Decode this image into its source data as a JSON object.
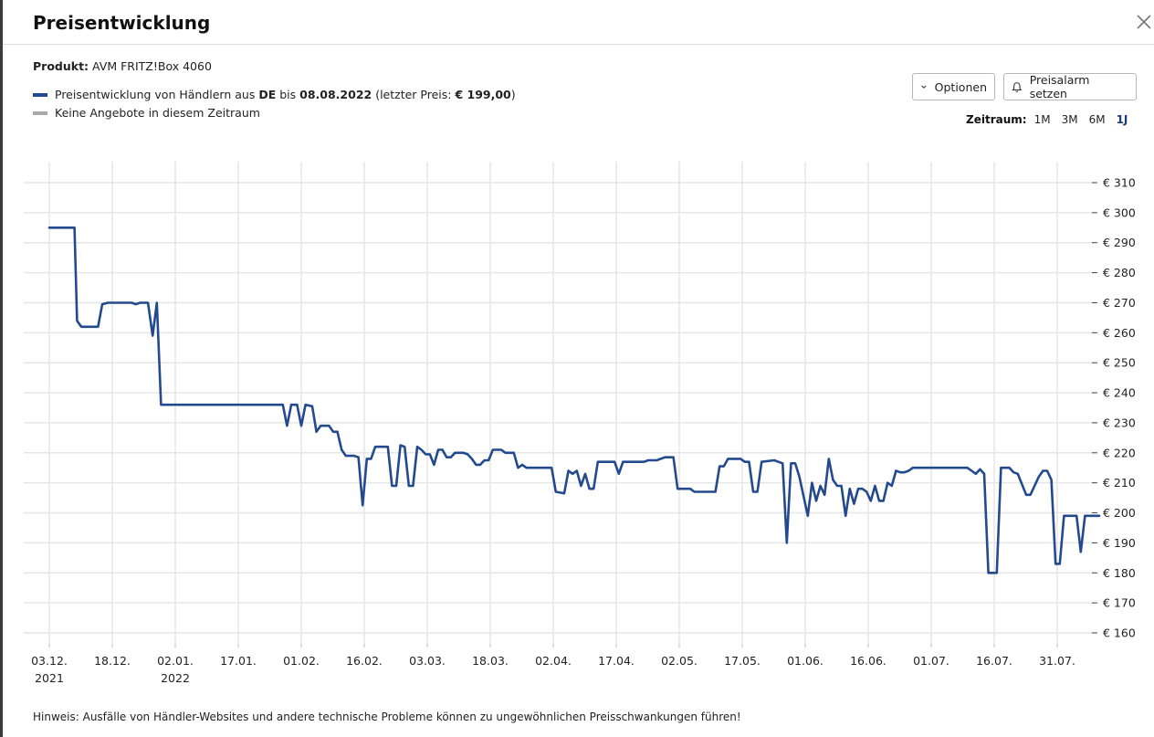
{
  "header": {
    "title": "Preisentwicklung"
  },
  "product": {
    "label": "Produkt:",
    "name": "AVM FRITZ!Box 4060"
  },
  "legend": {
    "series_prefix": "Preisentwicklung von Händlern aus",
    "country": "DE",
    "until_word": "bis",
    "date": "08.08.2022",
    "last_price_prefix": "(letzter Preis:",
    "last_price": "€ 199,00",
    "last_price_suffix": ")",
    "no_offers": "Keine Angebote in diesem Zeitraum",
    "series_color": "#234a8e",
    "no_offers_color": "#aaaaaa"
  },
  "buttons": {
    "options": "Optionen",
    "price_alert": "Preisalarm setzen"
  },
  "timerange": {
    "label": "Zeitraum:",
    "options": [
      "1M",
      "3M",
      "6M",
      "1J"
    ],
    "active": "1J"
  },
  "hint": "Hinweis: Ausfälle von Händler-Websites und andere technische Probleme können zu ungewöhnlichen Preisschwankungen führen!",
  "chart_data": {
    "type": "line",
    "title": "",
    "xlabel": "",
    "ylabel": "",
    "grid": true,
    "legend_position": "top-left",
    "x_ticks": [
      {
        "day": 0,
        "label": "03.12.",
        "sub": "2021"
      },
      {
        "day": 15,
        "label": "18.12.",
        "sub": ""
      },
      {
        "day": 30,
        "label": "02.01.",
        "sub": "2022"
      },
      {
        "day": 45,
        "label": "17.01.",
        "sub": ""
      },
      {
        "day": 60,
        "label": "01.02.",
        "sub": ""
      },
      {
        "day": 75,
        "label": "16.02.",
        "sub": ""
      },
      {
        "day": 90,
        "label": "03.03.",
        "sub": ""
      },
      {
        "day": 105,
        "label": "18.03.",
        "sub": ""
      },
      {
        "day": 120,
        "label": "02.04.",
        "sub": ""
      },
      {
        "day": 135,
        "label": "17.04.",
        "sub": ""
      },
      {
        "day": 150,
        "label": "02.05.",
        "sub": ""
      },
      {
        "day": 165,
        "label": "17.05.",
        "sub": ""
      },
      {
        "day": 180,
        "label": "01.06.",
        "sub": ""
      },
      {
        "day": 195,
        "label": "16.06.",
        "sub": ""
      },
      {
        "day": 210,
        "label": "01.07.",
        "sub": ""
      },
      {
        "day": 225,
        "label": "16.07.",
        "sub": ""
      },
      {
        "day": 240,
        "label": "31.07.",
        "sub": ""
      }
    ],
    "x_range": [
      0,
      248
    ],
    "y_ticks": [
      160,
      170,
      180,
      190,
      200,
      210,
      220,
      230,
      240,
      250,
      260,
      270,
      280,
      290,
      300,
      310
    ],
    "y_tick_format": "€ {v}",
    "ylim": [
      160,
      310
    ],
    "series": [
      {
        "name": "Preisentwicklung von Händlern aus DE",
        "color": "#234a8e",
        "points": [
          [
            0,
            295
          ],
          [
            6,
            295
          ],
          [
            6.6,
            264
          ],
          [
            7.6,
            262
          ],
          [
            11.6,
            262
          ],
          [
            12.6,
            269.5
          ],
          [
            14,
            270
          ],
          [
            19.6,
            270
          ],
          [
            20.6,
            269.5
          ],
          [
            21.6,
            270
          ],
          [
            23.5,
            270
          ],
          [
            24.6,
            259
          ],
          [
            25.6,
            270
          ],
          [
            26.6,
            236
          ],
          [
            55.6,
            236
          ],
          [
            56.6,
            229
          ],
          [
            57.6,
            236
          ],
          [
            59,
            236
          ],
          [
            60,
            229
          ],
          [
            61,
            236
          ],
          [
            62.6,
            235.5
          ],
          [
            63.6,
            227
          ],
          [
            64.6,
            229
          ],
          [
            66.6,
            229
          ],
          [
            67.6,
            227
          ],
          [
            68.6,
            227
          ],
          [
            69.6,
            221
          ],
          [
            70.6,
            219
          ],
          [
            72.6,
            219
          ],
          [
            73.6,
            218.5
          ],
          [
            74.6,
            202.5
          ],
          [
            75.6,
            218
          ],
          [
            76.6,
            218
          ],
          [
            77.6,
            222
          ],
          [
            80.6,
            222
          ],
          [
            81.6,
            209
          ],
          [
            82.6,
            209
          ],
          [
            83.6,
            222.5
          ],
          [
            84.6,
            222
          ],
          [
            85.6,
            209
          ],
          [
            86.6,
            209
          ],
          [
            87.6,
            222
          ],
          [
            88.6,
            221
          ],
          [
            89.6,
            219.5
          ],
          [
            90.6,
            219.5
          ],
          [
            91.6,
            216
          ],
          [
            92.6,
            221
          ],
          [
            93.6,
            221
          ],
          [
            94.6,
            218.5
          ],
          [
            95.6,
            218.5
          ],
          [
            96.6,
            220
          ],
          [
            97.6,
            220
          ],
          [
            98.6,
            220
          ],
          [
            99.6,
            219.5
          ],
          [
            100.6,
            218
          ],
          [
            101.6,
            216
          ],
          [
            102.6,
            216
          ],
          [
            103.6,
            217.5
          ],
          [
            104.6,
            217.5
          ],
          [
            105.6,
            221
          ],
          [
            107.6,
            221
          ],
          [
            108.6,
            220
          ],
          [
            110.6,
            220
          ],
          [
            111.6,
            215
          ],
          [
            112.6,
            216
          ],
          [
            113.6,
            215
          ],
          [
            119.6,
            215
          ],
          [
            120.6,
            207
          ],
          [
            122.6,
            206.5
          ],
          [
            123.6,
            214
          ],
          [
            124.6,
            213
          ],
          [
            125.6,
            214
          ],
          [
            126.6,
            209
          ],
          [
            127.6,
            213
          ],
          [
            128.6,
            208
          ],
          [
            129.6,
            208
          ],
          [
            130.6,
            217
          ],
          [
            134.6,
            217
          ],
          [
            135.6,
            213
          ],
          [
            136.6,
            217
          ],
          [
            141.6,
            217
          ],
          [
            142.6,
            217.5
          ],
          [
            144.6,
            217.5
          ],
          [
            146.6,
            218.5
          ],
          [
            148.6,
            218.5
          ],
          [
            149.6,
            208
          ],
          [
            152.6,
            208
          ],
          [
            153.6,
            207
          ],
          [
            158.6,
            207
          ],
          [
            159.6,
            215.5
          ],
          [
            160.6,
            215.5
          ],
          [
            161.6,
            218
          ],
          [
            164.6,
            218
          ],
          [
            165.6,
            217
          ],
          [
            166.6,
            217
          ],
          [
            167.6,
            207
          ],
          [
            168.6,
            207
          ],
          [
            169.6,
            217
          ],
          [
            172.6,
            217.5
          ],
          [
            173.6,
            217
          ],
          [
            174.6,
            216.5
          ],
          [
            175.6,
            190
          ],
          [
            176.6,
            216.5
          ],
          [
            177.6,
            216.5
          ],
          [
            178.6,
            212
          ],
          [
            180.6,
            199
          ],
          [
            181.6,
            210
          ],
          [
            182.6,
            204
          ],
          [
            183.6,
            209
          ],
          [
            184.6,
            206
          ],
          [
            185.6,
            218
          ],
          [
            186.6,
            211
          ],
          [
            187.6,
            209
          ],
          [
            188.6,
            209
          ],
          [
            189.6,
            199
          ],
          [
            190.6,
            208
          ],
          [
            191.6,
            203
          ],
          [
            192.6,
            208
          ],
          [
            193.6,
            208
          ],
          [
            194.6,
            207
          ],
          [
            195.6,
            204
          ],
          [
            196.6,
            209
          ],
          [
            197.6,
            204
          ],
          [
            198.6,
            204
          ],
          [
            199.6,
            210
          ],
          [
            200.6,
            209
          ],
          [
            201.6,
            214
          ],
          [
            202.6,
            213.5
          ],
          [
            203.6,
            213.5
          ],
          [
            204.6,
            214
          ],
          [
            205.6,
            215
          ],
          [
            218.6,
            215
          ],
          [
            219.6,
            214
          ],
          [
            220.6,
            213
          ],
          [
            221.6,
            214.5
          ],
          [
            222.6,
            213
          ],
          [
            223.6,
            180
          ],
          [
            225.6,
            180
          ],
          [
            226.6,
            215
          ],
          [
            228.6,
            215
          ],
          [
            229.6,
            213.5
          ],
          [
            230.6,
            213
          ],
          [
            232.6,
            206
          ],
          [
            233.6,
            206
          ],
          [
            234.6,
            209
          ],
          [
            235.6,
            212
          ],
          [
            236.6,
            214
          ],
          [
            237.6,
            214
          ],
          [
            238.6,
            211
          ],
          [
            239.6,
            183
          ],
          [
            240.6,
            183
          ],
          [
            241.6,
            199
          ],
          [
            244.6,
            199
          ],
          [
            245.6,
            187
          ],
          [
            246.6,
            199
          ],
          [
            250,
            199
          ]
        ]
      }
    ]
  }
}
